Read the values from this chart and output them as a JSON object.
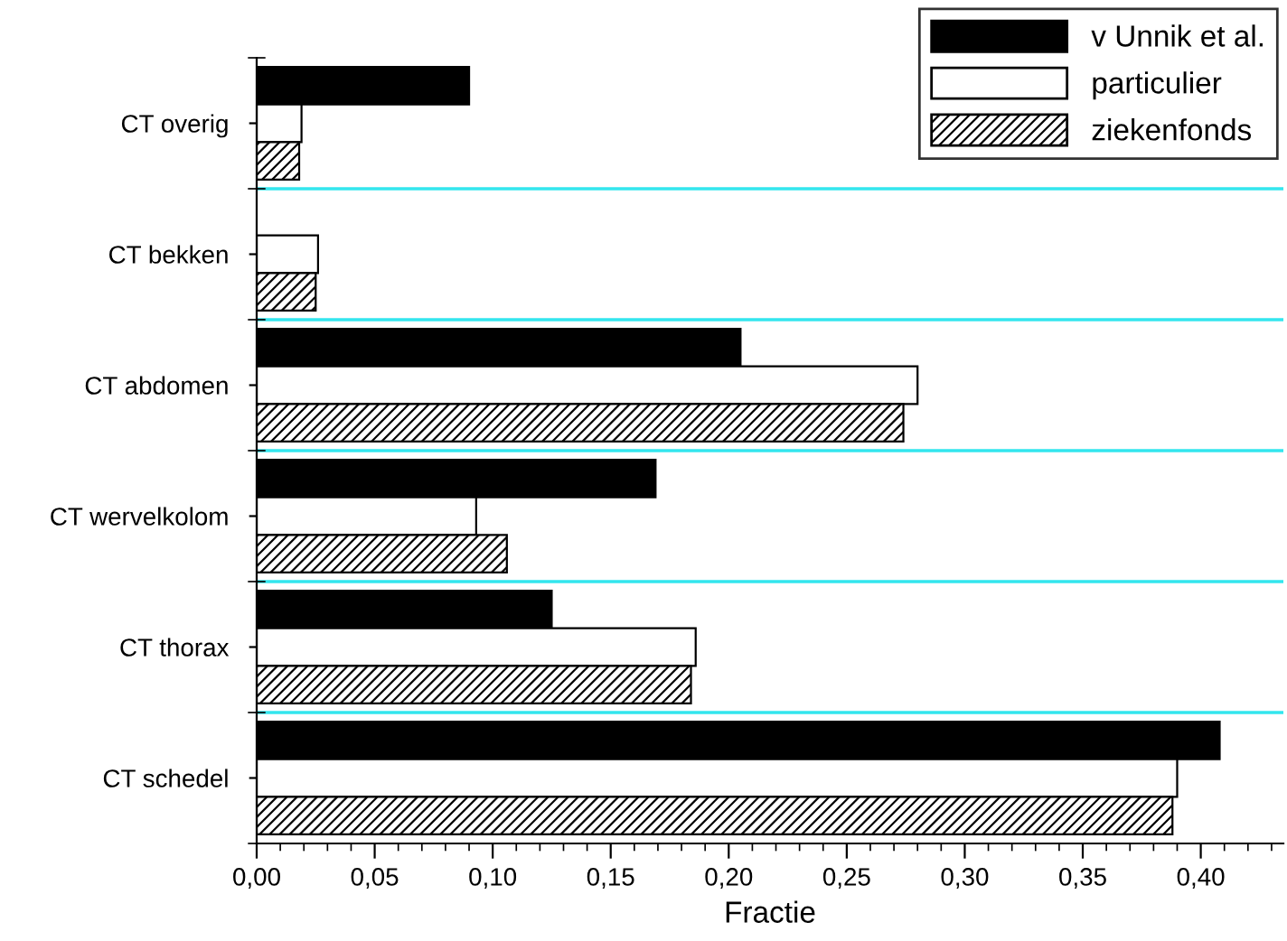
{
  "chart_data": {
    "type": "bar",
    "orientation": "horizontal",
    "xlabel": "Fractie",
    "categories": [
      "CT overig",
      "CT bekken",
      "CT abdomen",
      "CT wervelkolom",
      "CT thorax",
      "CT schedel"
    ],
    "series": [
      {
        "name": "v Unnik et al.",
        "color": "#000000",
        "values": [
          0.09,
          null,
          0.205,
          0.169,
          0.125,
          0.408
        ]
      },
      {
        "name": "particulier",
        "color": "#ffffff",
        "values": [
          0.019,
          0.026,
          0.28,
          0.093,
          0.186,
          0.39
        ]
      },
      {
        "name": "ziekenfonds",
        "color": "#000000",
        "values": [
          0.018,
          0.025,
          0.274,
          0.106,
          0.184,
          0.388
        ]
      }
    ],
    "xlim": [
      0,
      0.435
    ],
    "xticks": [
      {
        "value": 0,
        "label": "0,00"
      },
      {
        "value": 0.05,
        "label": "0,05"
      },
      {
        "value": 0.1,
        "label": "0,10"
      },
      {
        "value": 0.15,
        "label": "0,15"
      },
      {
        "value": 0.2,
        "label": "0,20"
      },
      {
        "value": 0.25,
        "label": "0,25"
      },
      {
        "value": 0.3,
        "label": "0,30"
      },
      {
        "value": 0.35,
        "label": "0,35"
      },
      {
        "value": 0.4,
        "label": "0,40"
      }
    ],
    "grid": "y",
    "legend": "top right"
  }
}
